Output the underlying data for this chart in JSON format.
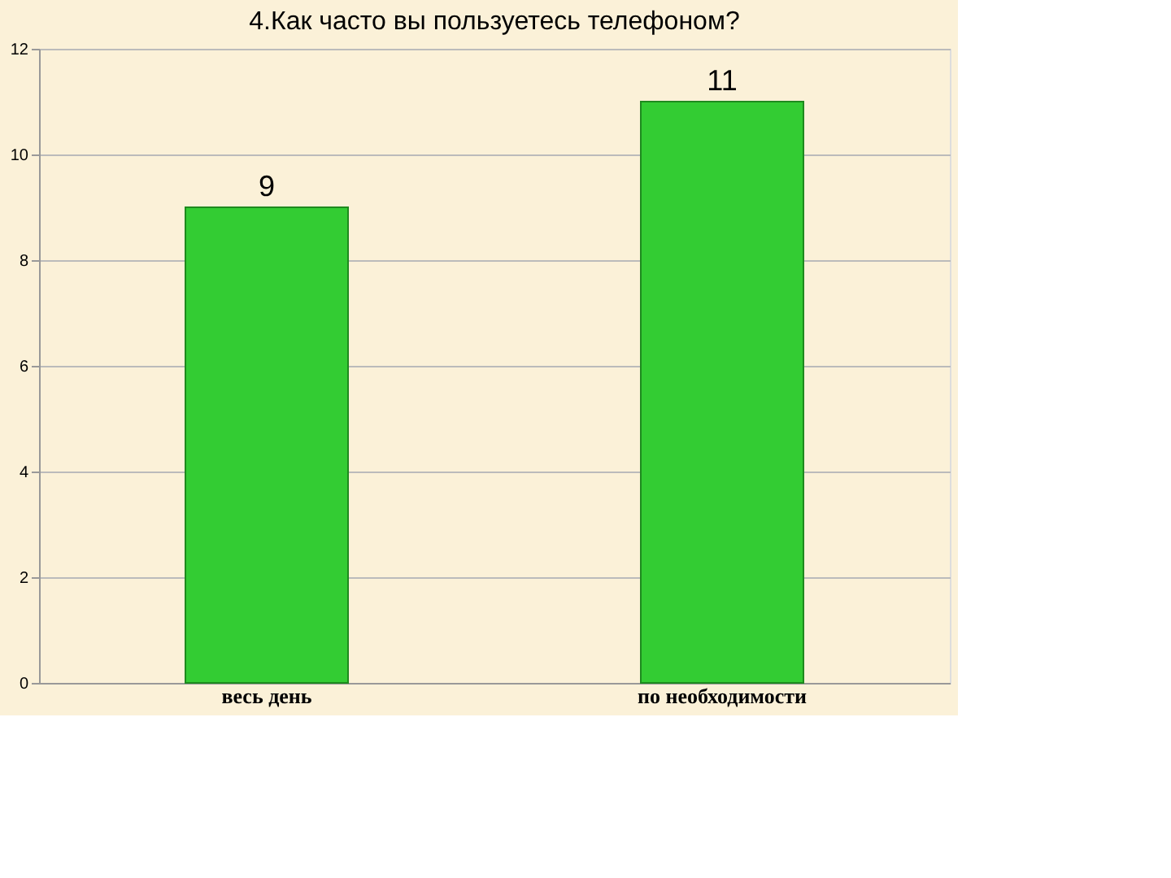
{
  "chart_data": {
    "type": "bar",
    "title": "4.Как часто вы пользуетесь телефоном?",
    "categories": [
      "весь день",
      "по необходимости"
    ],
    "values": [
      9,
      11
    ],
    "color": "#33cc33",
    "ylim": [
      0,
      12
    ],
    "yticks": [
      0,
      2,
      4,
      6,
      8,
      10,
      12
    ],
    "grid": "y",
    "data_labels": true
  }
}
